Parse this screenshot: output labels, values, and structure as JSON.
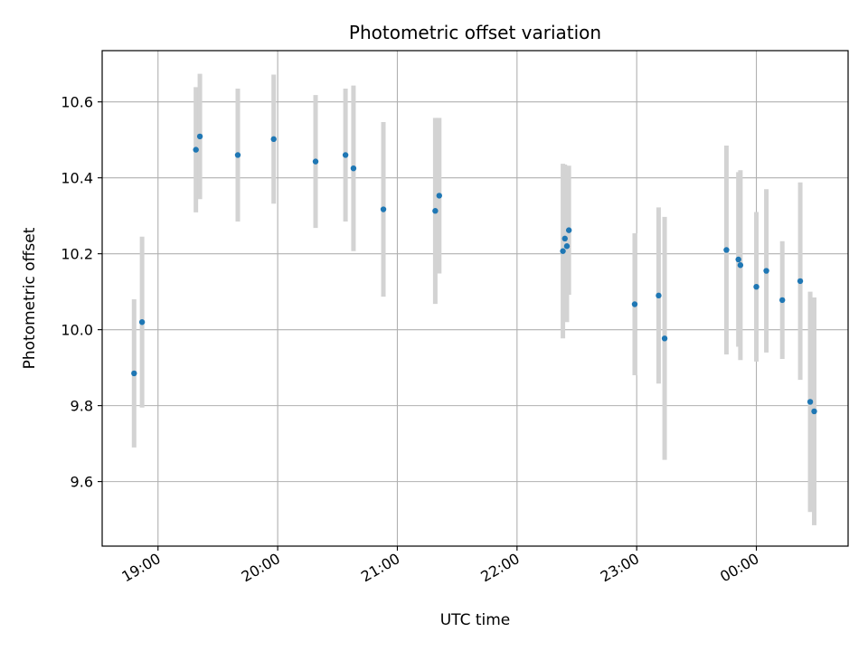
{
  "chart_data": {
    "type": "scatter",
    "title": "Photometric offset variation",
    "xlabel": "UTC time",
    "ylabel": "Photometric offset",
    "grid": true,
    "x_ticks": [
      "19:00",
      "20:00",
      "21:00",
      "22:00",
      "23:00",
      "00:00"
    ],
    "y_ticks": [
      "9.6",
      "9.8",
      "10.0",
      "10.2",
      "10.4",
      "10.6"
    ],
    "xlim": [
      "18:32",
      "00:46"
    ],
    "ylim": [
      9.43,
      10.735
    ],
    "colors": {
      "point": "#1f77b4",
      "errorbar": "#d3d3d3",
      "grid": "#b0b0b0"
    },
    "points": [
      {
        "x": "18:48",
        "y": 9.885,
        "err": 0.195
      },
      {
        "x": "18:52",
        "y": 10.02,
        "err": 0.225
      },
      {
        "x": "19:19",
        "y": 10.474,
        "err": 0.165
      },
      {
        "x": "19:21",
        "y": 10.509,
        "err": 0.165
      },
      {
        "x": "19:40",
        "y": 10.46,
        "err": 0.175
      },
      {
        "x": "19:58",
        "y": 10.502,
        "err": 0.17
      },
      {
        "x": "20:19",
        "y": 10.443,
        "err": 0.175
      },
      {
        "x": "20:34",
        "y": 10.46,
        "err": 0.175
      },
      {
        "x": "20:38",
        "y": 10.425,
        "err": 0.218
      },
      {
        "x": "20:53",
        "y": 10.317,
        "err": 0.23
      },
      {
        "x": "21:19",
        "y": 10.313,
        "err": 0.245
      },
      {
        "x": "21:21",
        "y": 10.353,
        "err": 0.205
      },
      {
        "x": "22:23",
        "y": 10.207,
        "err": 0.23
      },
      {
        "x": "22:24",
        "y": 10.24,
        "err": 0.195
      },
      {
        "x": "22:25",
        "y": 10.22,
        "err": 0.2
      },
      {
        "x": "22:26",
        "y": 10.262,
        "err": 0.17
      },
      {
        "x": "22:59",
        "y": 10.067,
        "err": 0.187
      },
      {
        "x": "23:11",
        "y": 10.09,
        "err": 0.232
      },
      {
        "x": "23:14",
        "y": 9.977,
        "err": 0.32
      },
      {
        "x": "23:45",
        "y": 10.21,
        "err": 0.275
      },
      {
        "x": "23:51",
        "y": 10.185,
        "err": 0.23
      },
      {
        "x": "23:52",
        "y": 10.17,
        "err": 0.25
      },
      {
        "x": "00:00",
        "y": 10.113,
        "err": 0.197
      },
      {
        "x": "00:05",
        "y": 10.155,
        "err": 0.215
      },
      {
        "x": "00:13",
        "y": 10.078,
        "err": 0.155
      },
      {
        "x": "00:22",
        "y": 10.128,
        "err": 0.26
      },
      {
        "x": "00:27",
        "y": 9.81,
        "err": 0.29
      },
      {
        "x": "00:29",
        "y": 9.785,
        "err": 0.3
      }
    ]
  }
}
